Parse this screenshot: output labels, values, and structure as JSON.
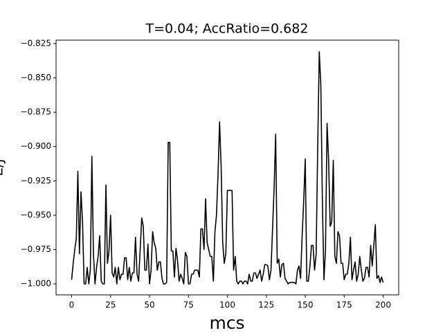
{
  "chart_data": {
    "type": "line",
    "title": "T=0.04; AccRatio=0.682",
    "xlabel": "mcs",
    "ylabel": "E/J",
    "x": [
      0,
      1,
      2,
      3,
      4,
      5,
      6,
      7,
      8,
      9,
      10,
      11,
      12,
      13,
      14,
      15,
      16,
      17,
      18,
      19,
      20,
      21,
      22,
      23,
      24,
      25,
      26,
      27,
      28,
      29,
      30,
      31,
      32,
      33,
      34,
      35,
      36,
      37,
      38,
      39,
      40,
      41,
      42,
      43,
      44,
      45,
      46,
      47,
      48,
      49,
      50,
      51,
      52,
      53,
      54,
      55,
      56,
      57,
      58,
      59,
      60,
      61,
      62,
      63,
      64,
      65,
      66,
      67,
      68,
      69,
      70,
      71,
      72,
      73,
      74,
      75,
      76,
      77,
      78,
      79,
      80,
      81,
      82,
      83,
      84,
      85,
      86,
      87,
      88,
      89,
      90,
      91,
      92,
      93,
      94,
      95,
      96,
      97,
      98,
      99,
      100,
      101,
      102,
      103,
      104,
      105,
      106,
      107,
      108,
      109,
      110,
      111,
      112,
      113,
      114,
      115,
      116,
      117,
      118,
      119,
      120,
      121,
      122,
      123,
      124,
      125,
      126,
      127,
      128,
      129,
      130,
      131,
      132,
      133,
      134,
      135,
      136,
      137,
      138,
      139,
      140,
      141,
      142,
      143,
      144,
      145,
      146,
      147,
      148,
      149,
      150,
      151,
      152,
      153,
      154,
      155,
      156,
      157,
      158,
      159,
      160,
      161,
      162,
      163,
      164,
      165,
      166,
      167,
      168,
      169,
      170,
      171,
      172,
      173,
      174,
      175,
      176,
      177,
      178,
      179,
      180,
      181,
      182,
      183,
      184,
      185,
      186,
      187,
      188,
      189,
      190,
      191,
      192,
      193,
      194,
      195,
      196,
      197,
      198,
      199,
      200
    ],
    "series": [
      {
        "name": "E",
        "color": "#000000",
        "values": [
          -0.997,
          -0.985,
          -0.975,
          -0.967,
          -0.918,
          -0.978,
          -0.933,
          -0.955,
          -1.0,
          -1.0,
          -0.988,
          -1.0,
          -0.99,
          -0.907,
          -0.978,
          -1.0,
          -0.988,
          -0.98,
          -0.965,
          -0.998,
          -1.0,
          -1.0,
          -0.928,
          -0.985,
          -0.976,
          -0.95,
          -0.992,
          -0.995,
          -0.988,
          -1.0,
          -0.988,
          -0.997,
          -0.993,
          -0.993,
          -0.981,
          -0.981,
          -0.997,
          -0.988,
          -0.998,
          -0.992,
          -0.992,
          -0.966,
          -0.993,
          -0.998,
          -0.975,
          -0.952,
          -0.958,
          -0.99,
          -0.99,
          -0.971,
          -1.0,
          -0.99,
          -0.962,
          -0.97,
          -0.974,
          -0.99,
          -0.984,
          -0.984,
          -0.996,
          -1.0,
          -1.0,
          -0.999,
          -0.897,
          -0.897,
          -0.976,
          -0.976,
          -0.995,
          -0.974,
          -0.983,
          -0.998,
          -0.993,
          -0.996,
          -1.0,
          -0.977,
          -0.98,
          -1.0,
          -1.0,
          -0.993,
          -0.993,
          -0.99,
          -0.99,
          -0.99,
          -0.995,
          -0.96,
          -0.96,
          -0.975,
          -0.938,
          -0.97,
          -0.975,
          -0.98,
          -0.98,
          -0.998,
          -0.962,
          -0.95,
          -0.92,
          -0.882,
          -0.915,
          -0.97,
          -0.985,
          -0.978,
          -0.932,
          -0.932,
          -0.932,
          -0.932,
          -0.99,
          -0.98,
          -0.998,
          -1.0,
          -0.998,
          -0.998,
          -1.0,
          -0.998,
          -0.998,
          -1.0,
          -0.993,
          -0.998,
          -0.998,
          -0.992,
          -0.992,
          -0.996,
          -0.993,
          -0.99,
          -0.998,
          -0.993,
          -0.986,
          -0.986,
          -0.987,
          -0.997,
          -0.99,
          -0.96,
          -0.93,
          -0.891,
          -0.985,
          -0.982,
          -0.995,
          -0.986,
          -0.985,
          -0.996,
          -0.998,
          -1.0,
          -0.999,
          -0.999,
          -0.999,
          -0.999,
          -1.0,
          -0.99,
          -0.987,
          -0.996,
          -0.965,
          -0.94,
          -0.909,
          -0.998,
          -0.998,
          -0.987,
          -0.972,
          -0.972,
          -0.99,
          -0.978,
          -0.9,
          -0.831,
          -0.855,
          -0.94,
          -0.997,
          -0.975,
          -0.883,
          -0.91,
          -0.958,
          -0.955,
          -0.91,
          -0.98,
          -0.985,
          -0.962,
          -0.965,
          -0.985,
          -0.985,
          -0.997,
          -0.993,
          -0.993,
          -0.985,
          -0.966,
          -0.997,
          -0.99,
          -0.984,
          -0.998,
          -0.993,
          -0.98,
          -0.99,
          -0.998,
          -0.996,
          -0.988,
          -0.988,
          -0.995,
          -0.972,
          -0.987,
          -0.972,
          -0.957,
          -0.996,
          -0.994,
          -0.999,
          -0.995,
          -0.999
        ]
      }
    ],
    "xlim": [
      -10,
      210
    ],
    "xticks": [
      0,
      25,
      50,
      75,
      100,
      125,
      150,
      175,
      200
    ],
    "ylim": [
      -1.008,
      -0.8225
    ],
    "yticks": [
      {
        "value": -1.0,
        "label": "−1.000"
      },
      {
        "value": -0.975,
        "label": "−0.975"
      },
      {
        "value": -0.95,
        "label": "−0.950"
      },
      {
        "value": -0.925,
        "label": "−0.925"
      },
      {
        "value": -0.9,
        "label": "−0.900"
      },
      {
        "value": -0.875,
        "label": "−0.875"
      },
      {
        "value": -0.85,
        "label": "−0.850"
      },
      {
        "value": -0.825,
        "label": "−0.825"
      }
    ],
    "grid": false
  }
}
